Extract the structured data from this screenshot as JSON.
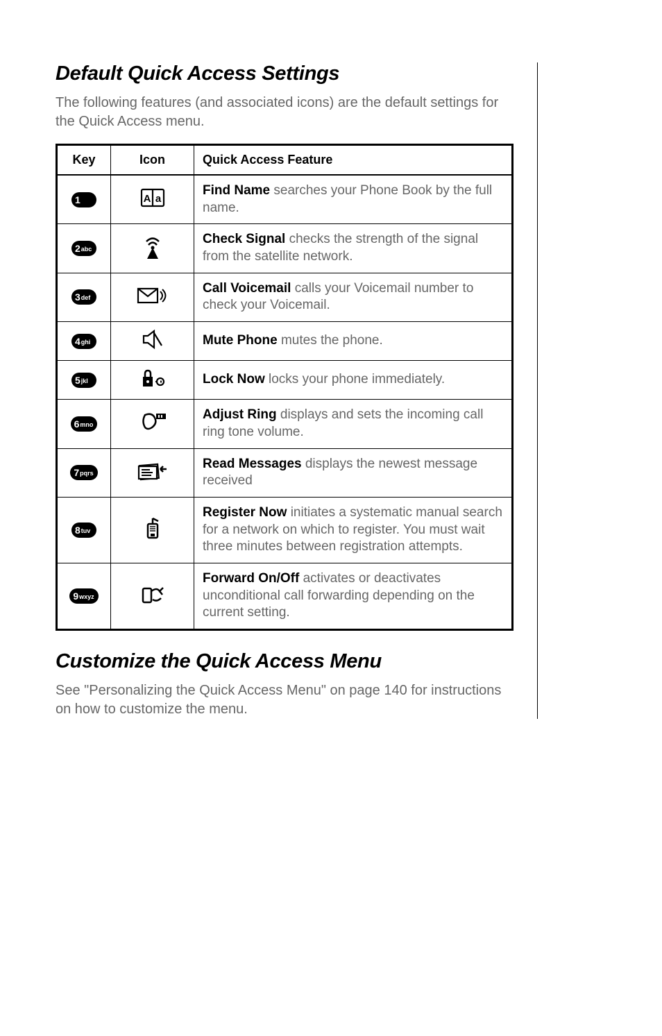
{
  "section1": {
    "heading": "Default Quick Access Settings",
    "intro": "The following features (and associated icons) are the default settings for the Quick Access menu."
  },
  "table": {
    "headers": {
      "key": "Key",
      "icon": "Icon",
      "feature": "Quick Access Feature"
    },
    "rows": [
      {
        "keyNum": "1",
        "keyLet": "",
        "featBold": "Find Name",
        "featRest": " searches your Phone Book by the full name."
      },
      {
        "keyNum": "2",
        "keyLet": "abc",
        "featBold": "Check Signal",
        "featRest": " checks the strength of the signal from the satellite network."
      },
      {
        "keyNum": "3",
        "keyLet": "def",
        "featBold": "Call Voicemail",
        "featRest": " calls your Voicemail number to check your Voicemail."
      },
      {
        "keyNum": "4",
        "keyLet": "ghi",
        "featBold": "Mute Phone",
        "featRest": " mutes the phone."
      },
      {
        "keyNum": "5",
        "keyLet": "jkl",
        "featBold": "Lock Now",
        "featRest": " locks your phone immediately."
      },
      {
        "keyNum": "6",
        "keyLet": "mno",
        "featBold": "Adjust Ring",
        "featRest": " displays and sets the incoming call ring tone volume."
      },
      {
        "keyNum": "7",
        "keyLet": "pqrs",
        "featBold": "Read Messages",
        "featRest": " displays the newest message received"
      },
      {
        "keyNum": "8",
        "keyLet": "tuv",
        "featBold": "Register Now",
        "featRest": " initiates a systematic manual search for a network on which to register. You must wait three minutes between registration attempts."
      },
      {
        "keyNum": "9",
        "keyLet": "wxyz",
        "featBold": "Forward On/Off",
        "featRest": " activates or deactivates unconditional call forwarding depending on the current setting."
      }
    ]
  },
  "section2": {
    "heading": "Customize the Quick Access Menu",
    "outro": "See \"Personalizing the Quick Access Menu\" on page 140 for instructions on how to customize the menu."
  },
  "iconSvgs": {
    "phonebook": "<svg width='36' height='28' viewBox='0 0 36 28'><rect x='2' y='2' width='32' height='24' rx='2' fill='none' stroke='#000' stroke-width='2.2'/><line x1='18' y1='2' x2='18' y2='26' stroke='#000' stroke-width='2.2'/><text x='10' y='20' font-size='15' font-family='Arial' text-anchor='middle' fill='#000' font-weight='bold'>A</text><text x='26' y='20' font-size='15' font-family='Arial' text-anchor='middle' fill='#000' font-weight='bold'>a</text></svg>",
    "signal": "<svg width='30' height='34' viewBox='0 0 30 34'><path d='M 6 9 Q 15 0 24 9' fill='none' stroke='#000' stroke-width='2.5'/><path d='M 9 14 Q 15 7 21 14' fill='none' stroke='#000' stroke-width='2.5'/><circle cx='15' cy='18' r='2.5' fill='#000'/><polygon points='15,18 7,34 23,34' fill='#000'/></svg>",
    "voicemail": "<svg width='46' height='28' viewBox='0 0 46 28'><rect x='2' y='4' width='28' height='20' fill='none' stroke='#000' stroke-width='2.2'/><path d='M 2 4 L 16 15 L 30 4' fill='none' stroke='#000' stroke-width='2.2'/><path d='M 34 8 Q 40 14 34 20' fill='none' stroke='#000' stroke-width='2'/><path d='M 37 5 Q 46 14 37 23' fill='none' stroke='#000' stroke-width='2'/></svg>",
    "mute": "<svg width='34' height='30' viewBox='0 0 34 30'><path d='M 4 10 L 10 10 L 19 3 L 19 27 L 10 20 L 4 20 Z' fill='none' stroke='#000' stroke-width='2.2'/><line x1='19' y1='6' x2='30' y2='24' stroke='#000' stroke-width='2.2'/><line x1='30' y1='6' x2='19' y2='24' stroke='#000' stroke-width='0' /></svg>",
    "lock": "<svg width='40' height='30' viewBox='0 0 40 30'><rect x='6' y='13' width='14' height='14' fill='#000'/><path d='M 9 13 L 9 9 Q 9 4 13 4 Q 17 4 17 9 L 17 13' fill='none' stroke='#000' stroke-width='2.5'/><circle cx='13' cy='20' r='2' fill='#fff'/><circle cx='31' cy='20' r='5' fill='none' stroke='#000' stroke-width='2.2'/><line x1='24' y1='20' x2='26' y2='20' stroke='#000' stroke-width='2.2'/><line x1='31' y1='20' x2='38' y2='20' stroke='#000' stroke-width='3' stroke-dasharray='2,2'/></svg>",
    "ring": "<svg width='42' height='32' viewBox='0 0 42 32'><path d='M 10 24 Q 5 15 10 6 Q 20 2 24 10 Q 28 18 20 24 Q 14 28 10 24' fill='none' stroke='#000' stroke-width='2.5'/><rect x='26' y='4' width='14' height='8' fill='#000'/><rect x='29' y='6' width='2' height='4' fill='#fff'/><rect x='33' y='6' width='2' height='4' fill='#fff'/></svg>",
    "messages": "<svg width='44' height='30' viewBox='0 0 44 30'><rect x='4' y='6' width='26' height='20' fill='#fff' stroke='#000' stroke-width='2.2' transform='rotate(-5 17 16)'/><rect x='2' y='8' width='26' height='18' fill='#fff' stroke='#000' stroke-width='2.2'/><line x1='6' y1='13' x2='18' y2='13' stroke='#000' stroke-width='2'/><line x1='6' y1='17' x2='22' y2='17' stroke='#000' stroke-width='2'/><line x1='6' y1='21' x2='20' y2='21' stroke='#000' stroke-width='2'/><path d='M 42 12 L 33 12 M 33 12 L 37 8 M 33 12 L 37 16' fill='none' stroke='#000' stroke-width='2.5'/></svg>",
    "register": "<svg width='30' height='36' viewBox='0 0 30 36'><rect x='8' y='12' width='14' height='20' rx='2' fill='none' stroke='#000' stroke-width='2.5'/><rect x='12' y='26' width='6' height='4' fill='#000'/><line x1='11' y1='16' x2='19' y2='16' stroke='#000' stroke-width='1.5'/><line x1='11' y1='19' x2='19' y2='19' stroke='#000' stroke-width='1.5'/><line x1='11' y1='22' x2='19' y2='22' stroke='#000' stroke-width='1.5'/><line x1='15' y1='12' x2='15' y2='4' stroke='#000' stroke-width='2.5'/><path d='M 15 4 L 23 8' fill='none' stroke='#000' stroke-width='2.5'/></svg>",
    "forward": "<svg width='36' height='32' viewBox='0 0 36 32'><rect x='4' y='8' width='12' height='20' rx='2' fill='none' stroke='#000' stroke-width='2.5'/><path d='M 16 12 Q 24 6 28 12 L 33 7 M 28 12 L 32 17' fill='none' stroke='#000' stroke-width='2.5'/><path d='M 30 22 Q 24 28 18 24' fill='none' stroke='#000' stroke-width='2.5'/></svg>"
  },
  "iconNames": [
    "phonebook",
    "signal",
    "voicemail",
    "mute",
    "lock",
    "ring",
    "messages",
    "register",
    "forward"
  ]
}
